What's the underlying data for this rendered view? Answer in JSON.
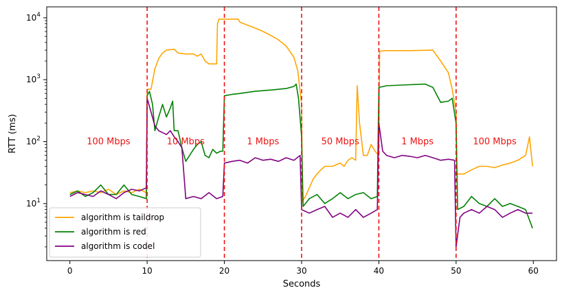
{
  "chart_data": {
    "type": "line",
    "title": "",
    "xlabel": "Seconds",
    "ylabel": "RTT (ms)",
    "yscale": "log",
    "xlim": [
      -3,
      63
    ],
    "ylim": [
      1.2,
      15000
    ],
    "xticks": [
      0,
      10,
      20,
      30,
      40,
      50,
      60
    ],
    "yticks": [
      {
        "value": 10,
        "base": "10",
        "exp": "1"
      },
      {
        "value": 100,
        "base": "10",
        "exp": "2"
      },
      {
        "value": 1000,
        "base": "10",
        "exp": "3"
      },
      {
        "value": 10000,
        "base": "10",
        "exp": "4"
      }
    ],
    "grid": false,
    "legend_position": "lower-left",
    "vlines": [
      10,
      20,
      30,
      40,
      50
    ],
    "vline_color": "#ee1111",
    "annotations": [
      {
        "text": "100 Mbps",
        "x": 5,
        "y": 100
      },
      {
        "text": "10 Mbps",
        "x": 15,
        "y": 100
      },
      {
        "text": "1 Mbps",
        "x": 25,
        "y": 100
      },
      {
        "text": "50 Mbps",
        "x": 35,
        "y": 100
      },
      {
        "text": "1 Mbps",
        "x": 45,
        "y": 100
      },
      {
        "text": "100 Mbps",
        "x": 55,
        "y": 100
      }
    ],
    "annotation_color": "#ee1111",
    "series": [
      {
        "name": "algorithm is taildrop",
        "color": "#FFA500",
        "points": [
          [
            0,
            15
          ],
          [
            1,
            16
          ],
          [
            2,
            15
          ],
          [
            3,
            16
          ],
          [
            4,
            15
          ],
          [
            5,
            17
          ],
          [
            6,
            14
          ],
          [
            7,
            16
          ],
          [
            8,
            15
          ],
          [
            9,
            17
          ],
          [
            9.9,
            15
          ],
          [
            10,
            700
          ],
          [
            10.5,
            700
          ],
          [
            11,
            1500
          ],
          [
            11.5,
            2200
          ],
          [
            12,
            2700
          ],
          [
            12.5,
            3000
          ],
          [
            13.5,
            3100
          ],
          [
            14,
            2700
          ],
          [
            15,
            2600
          ],
          [
            16,
            2600
          ],
          [
            16.5,
            2400
          ],
          [
            17,
            2600
          ],
          [
            17.5,
            2000
          ],
          [
            18,
            1800
          ],
          [
            19,
            1800
          ],
          [
            19.1,
            8000
          ],
          [
            19.3,
            9500
          ],
          [
            21,
            9500
          ],
          [
            21.8,
            9500
          ],
          [
            22,
            8500
          ],
          [
            23,
            7600
          ],
          [
            24,
            6800
          ],
          [
            25,
            6000
          ],
          [
            26,
            5200
          ],
          [
            27,
            4400
          ],
          [
            28,
            3500
          ],
          [
            29,
            2300
          ],
          [
            29.5,
            1400
          ],
          [
            30,
            400
          ],
          [
            30.1,
            11
          ],
          [
            30.5,
            13
          ],
          [
            31,
            18
          ],
          [
            31.5,
            25
          ],
          [
            32,
            30
          ],
          [
            32.5,
            35
          ],
          [
            33,
            40
          ],
          [
            34,
            40
          ],
          [
            35,
            45
          ],
          [
            35.5,
            40
          ],
          [
            36,
            50
          ],
          [
            36.5,
            55
          ],
          [
            37,
            50
          ],
          [
            37.2,
            800
          ],
          [
            37.5,
            200
          ],
          [
            38,
            60
          ],
          [
            38.5,
            60
          ],
          [
            39,
            90
          ],
          [
            39.5,
            70
          ],
          [
            40,
            60
          ],
          [
            40.1,
            2900
          ],
          [
            41,
            2950
          ],
          [
            44,
            2950
          ],
          [
            47,
            3000
          ],
          [
            48,
            2000
          ],
          [
            49,
            1300
          ],
          [
            49.5,
            700
          ],
          [
            50,
            300
          ],
          [
            50.1,
            30
          ],
          [
            51,
            30
          ],
          [
            52,
            35
          ],
          [
            53,
            40
          ],
          [
            54,
            40
          ],
          [
            55,
            38
          ],
          [
            56,
            42
          ],
          [
            57,
            45
          ],
          [
            58,
            50
          ],
          [
            59,
            60
          ],
          [
            59.5,
            120
          ],
          [
            59.9,
            40
          ]
        ]
      },
      {
        "name": "algorithm is red",
        "color": "#008000",
        "points": [
          [
            0,
            14
          ],
          [
            1,
            16
          ],
          [
            2,
            13
          ],
          [
            3,
            15
          ],
          [
            4,
            20
          ],
          [
            5,
            14
          ],
          [
            6,
            14
          ],
          [
            7,
            20
          ],
          [
            8,
            14
          ],
          [
            9,
            13
          ],
          [
            9.9,
            12
          ],
          [
            10,
            550
          ],
          [
            10.3,
            650
          ],
          [
            10.7,
            400
          ],
          [
            11,
            150
          ],
          [
            11.5,
            250
          ],
          [
            12,
            400
          ],
          [
            12.5,
            250
          ],
          [
            13,
            350
          ],
          [
            13.3,
            450
          ],
          [
            13.5,
            150
          ],
          [
            14,
            150
          ],
          [
            14.5,
            80
          ],
          [
            15,
            48
          ],
          [
            15.5,
            60
          ],
          [
            16,
            75
          ],
          [
            16.5,
            90
          ],
          [
            17,
            100
          ],
          [
            17.5,
            60
          ],
          [
            18,
            55
          ],
          [
            18.5,
            75
          ],
          [
            19,
            65
          ],
          [
            19.5,
            70
          ],
          [
            19.8,
            70
          ],
          [
            20,
            550
          ],
          [
            21,
            580
          ],
          [
            22,
            600
          ],
          [
            24,
            650
          ],
          [
            26,
            680
          ],
          [
            28,
            720
          ],
          [
            29,
            780
          ],
          [
            29.3,
            850
          ],
          [
            29.6,
            500
          ],
          [
            30,
            120
          ],
          [
            30.2,
            9
          ],
          [
            31,
            12
          ],
          [
            32,
            14
          ],
          [
            33,
            10
          ],
          [
            34,
            12
          ],
          [
            35,
            15
          ],
          [
            36,
            12
          ],
          [
            37,
            14
          ],
          [
            38,
            15
          ],
          [
            39,
            12
          ],
          [
            39.8,
            13
          ],
          [
            40,
            750
          ],
          [
            41,
            800
          ],
          [
            43,
            820
          ],
          [
            46,
            850
          ],
          [
            47,
            750
          ],
          [
            48,
            430
          ],
          [
            49,
            450
          ],
          [
            49.5,
            500
          ],
          [
            50,
            200
          ],
          [
            50.2,
            8
          ],
          [
            51,
            9
          ],
          [
            52,
            13
          ],
          [
            53,
            10
          ],
          [
            54,
            9
          ],
          [
            55,
            12
          ],
          [
            56,
            9
          ],
          [
            57,
            10
          ],
          [
            58,
            9
          ],
          [
            59,
            8
          ],
          [
            59.9,
            4
          ]
        ]
      },
      {
        "name": "algorithm is codel",
        "color": "#800080",
        "points": [
          [
            0,
            13
          ],
          [
            1,
            15
          ],
          [
            2,
            14
          ],
          [
            3,
            13
          ],
          [
            4,
            16
          ],
          [
            5,
            14
          ],
          [
            6,
            12
          ],
          [
            7,
            15
          ],
          [
            8,
            17
          ],
          [
            9,
            16
          ],
          [
            9.9,
            18
          ],
          [
            10,
            500
          ],
          [
            10.5,
            300
          ],
          [
            11,
            180
          ],
          [
            11.5,
            150
          ],
          [
            12,
            140
          ],
          [
            12.5,
            130
          ],
          [
            13,
            150
          ],
          [
            13.5,
            120
          ],
          [
            14,
            100
          ],
          [
            14.5,
            80
          ],
          [
            15,
            12
          ],
          [
            16,
            13
          ],
          [
            17,
            12
          ],
          [
            18,
            15
          ],
          [
            19,
            12
          ],
          [
            19.8,
            13
          ],
          [
            20,
            45
          ],
          [
            21,
            48
          ],
          [
            22,
            50
          ],
          [
            23,
            45
          ],
          [
            24,
            55
          ],
          [
            25,
            50
          ],
          [
            26,
            52
          ],
          [
            27,
            48
          ],
          [
            28,
            55
          ],
          [
            29,
            50
          ],
          [
            29.8,
            60
          ],
          [
            30,
            8
          ],
          [
            31,
            7
          ],
          [
            32,
            8
          ],
          [
            33,
            9
          ],
          [
            34,
            6
          ],
          [
            35,
            7
          ],
          [
            36,
            6
          ],
          [
            37,
            8
          ],
          [
            38,
            6
          ],
          [
            39,
            7
          ],
          [
            39.8,
            8
          ],
          [
            40,
            200
          ],
          [
            40.5,
            70
          ],
          [
            41,
            60
          ],
          [
            42,
            55
          ],
          [
            43,
            60
          ],
          [
            44,
            58
          ],
          [
            45,
            55
          ],
          [
            46,
            60
          ],
          [
            47,
            55
          ],
          [
            48,
            50
          ],
          [
            49,
            52
          ],
          [
            49.8,
            50
          ],
          [
            50,
            2
          ],
          [
            50.5,
            6
          ],
          [
            51,
            7
          ],
          [
            52,
            8
          ],
          [
            53,
            7
          ],
          [
            54,
            9
          ],
          [
            55,
            8
          ],
          [
            56,
            6
          ],
          [
            57,
            7
          ],
          [
            58,
            8
          ],
          [
            59,
            7
          ],
          [
            59.9,
            7
          ]
        ]
      }
    ]
  }
}
